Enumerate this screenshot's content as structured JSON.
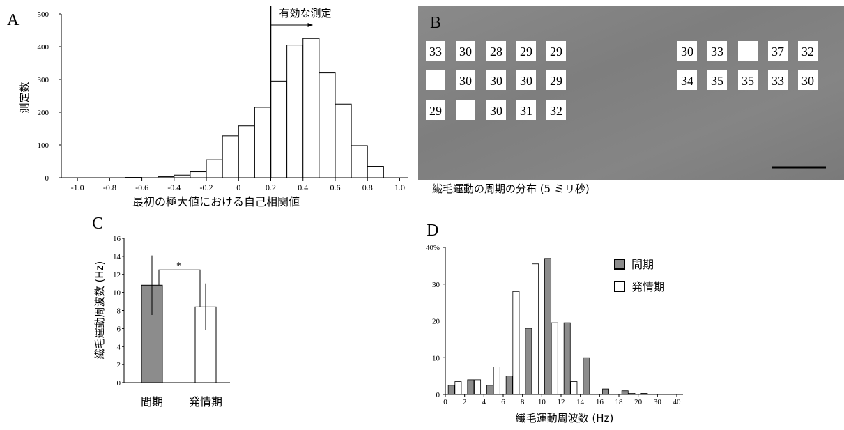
{
  "chart_data": [
    {
      "type": "histogram",
      "label": "A",
      "ylabel": "測定数",
      "xlabel": "最初の極大値における自己相関値",
      "annotation": {
        "text": "有効な測定",
        "x": 0.2
      },
      "bins": [
        -1.0,
        -0.9,
        -0.8,
        -0.7,
        -0.6,
        -0.5,
        -0.4,
        -0.3,
        -0.2,
        -0.1,
        0,
        0.1,
        0.2,
        0.3,
        0.4,
        0.5,
        0.6,
        0.7,
        0.8,
        0.9
      ],
      "values": [
        0,
        0,
        0,
        1,
        0,
        3,
        8,
        18,
        55,
        128,
        158,
        215,
        295,
        405,
        425,
        320,
        225,
        98,
        35
      ],
      "color": "#ffffff",
      "xlim": [
        -1.1,
        1.05
      ],
      "ylim": [
        0,
        500
      ],
      "xticks": [
        {
          "value": -1.0,
          "label": "-1.0"
        },
        -0.8,
        -0.6,
        -0.4,
        -0.2,
        0,
        0.2,
        0.4,
        0.6,
        0.8,
        {
          "value": 1.0,
          "label": "1.0"
        }
      ],
      "yticks": [
        0,
        100,
        200,
        300,
        400,
        500
      ]
    },
    {
      "type": "bar",
      "label": "C",
      "ylabel": "繊毛運動周波数 (Hz)",
      "annotation": "*",
      "categories": [
        "間期",
        "発情期"
      ],
      "values": [
        10.8,
        8.4
      ],
      "errors": [
        3.3,
        2.6
      ],
      "colors": [
        "#8c8c8c",
        "#ffffff"
      ],
      "ylim": [
        0,
        16
      ],
      "yticks": [
        0,
        2,
        4,
        6,
        8,
        10,
        12,
        14,
        16
      ]
    },
    {
      "type": "grouped-histogram",
      "label": "D",
      "xlabel": "繊毛運動周波数 (Hz)",
      "bins": [
        0,
        2,
        4,
        6,
        8,
        10,
        12,
        14,
        16,
        18,
        20,
        30,
        40
      ],
      "series": [
        {
          "name": "間期",
          "color": "#8c8c8c",
          "values": [
            2.5,
            4,
            2.5,
            5,
            18,
            37,
            19.5,
            10,
            1.5,
            1,
            0.3,
            0
          ]
        },
        {
          "name": "発情期",
          "color": "#ffffff",
          "values": [
            3.5,
            4,
            7.5,
            28,
            35.5,
            19.5,
            3.5,
            0,
            0,
            0.3,
            0,
            0
          ]
        }
      ],
      "ylim": [
        0,
        40
      ],
      "yticks": [
        0,
        10,
        20,
        30,
        {
          "value": 40,
          "label": "40%"
        }
      ],
      "xticks": [
        0,
        2,
        4,
        6,
        8,
        10,
        12,
        14,
        16,
        18,
        20,
        30,
        40
      ]
    }
  ],
  "image_panel": {
    "label": "B",
    "caption": "繊毛運動の周期の分布 (5 ミリ秒)",
    "grids": [
      [
        [
          33,
          30,
          28,
          29,
          29
        ],
        [
          null,
          30,
          30,
          30,
          29
        ],
        [
          29,
          null,
          30,
          31,
          32
        ]
      ],
      [
        [
          30,
          33,
          null,
          37,
          32
        ],
        [
          34,
          35,
          35,
          33,
          30
        ]
      ]
    ]
  }
}
